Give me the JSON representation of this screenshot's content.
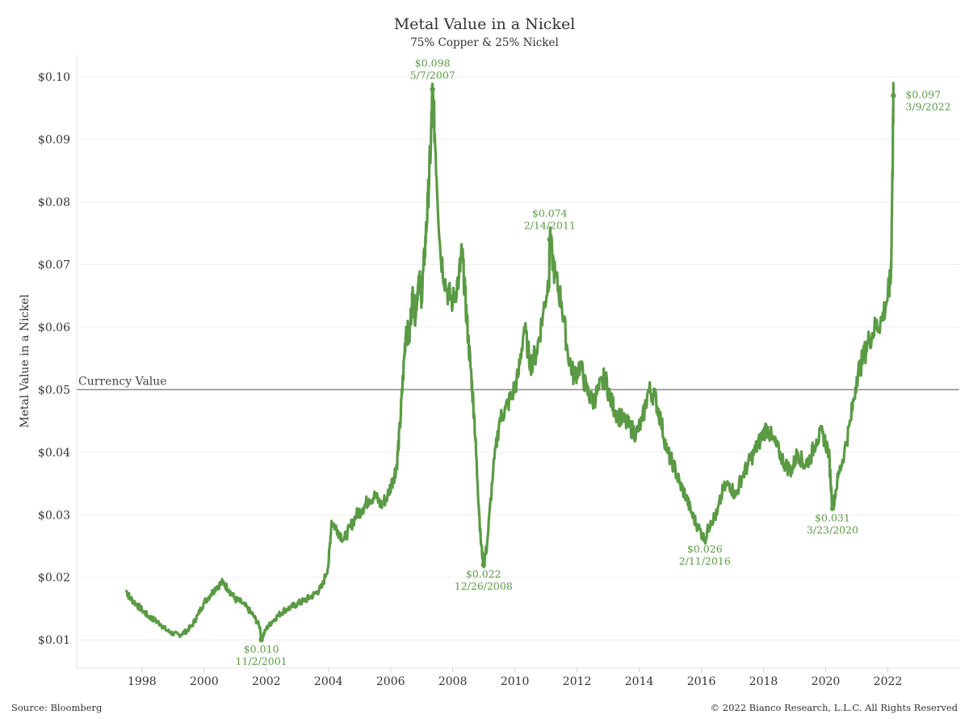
{
  "chart_data": {
    "type": "line",
    "title": "Metal Value in a Nickel",
    "subtitle": "75% Copper & 25% Nickel",
    "ylabel": "Metal Value in a Nickel",
    "xlabel": "",
    "ylim": [
      0.0055,
      0.1035
    ],
    "xlim": [
      1995.9,
      2024.3
    ],
    "yticks": [
      {
        "value": 0.01,
        "label": "$0.01"
      },
      {
        "value": 0.02,
        "label": "$0.02"
      },
      {
        "value": 0.03,
        "label": "$0.03"
      },
      {
        "value": 0.04,
        "label": "$0.04"
      },
      {
        "value": 0.05,
        "label": "$0.05"
      },
      {
        "value": 0.06,
        "label": "$0.06"
      },
      {
        "value": 0.07,
        "label": "$0.07"
      },
      {
        "value": 0.08,
        "label": "$0.08"
      },
      {
        "value": 0.09,
        "label": "$0.09"
      },
      {
        "value": 0.1,
        "label": "$0.10"
      }
    ],
    "xticks": [
      {
        "value": 1998,
        "label": "1998"
      },
      {
        "value": 2000,
        "label": "2000"
      },
      {
        "value": 2002,
        "label": "2002"
      },
      {
        "value": 2004,
        "label": "2004"
      },
      {
        "value": 2006,
        "label": "2006"
      },
      {
        "value": 2008,
        "label": "2008"
      },
      {
        "value": 2010,
        "label": "2010"
      },
      {
        "value": 2012,
        "label": "2012"
      },
      {
        "value": 2014,
        "label": "2014"
      },
      {
        "value": 2016,
        "label": "2016"
      },
      {
        "value": 2018,
        "label": "2018"
      },
      {
        "value": 2020,
        "label": "2020"
      },
      {
        "value": 2022,
        "label": "2022"
      }
    ],
    "grid": true,
    "series_color": "#5a9a44",
    "reference_line": {
      "value": 0.05,
      "label": "Currency Value",
      "color": "#8a8a8a"
    },
    "series": [
      {
        "x": [
          1997.5,
          1997.6,
          1997.8,
          1998.0,
          1998.2,
          1998.4,
          1998.6,
          1998.8,
          1999.0,
          1999.2,
          1999.4,
          1999.6,
          1999.8,
          2000.0,
          2000.2,
          2000.4,
          2000.6,
          2000.8,
          2001.0,
          2001.2,
          2001.4,
          2001.6,
          2001.8,
          2001.84,
          2002.0,
          2002.2,
          2002.4,
          2002.6,
          2002.8,
          2003.0,
          2003.2,
          2003.4,
          2003.6,
          2003.8,
          2004.0,
          2004.1,
          2004.3,
          2004.5,
          2004.7,
          2004.9,
          2005.1,
          2005.3,
          2005.5,
          2005.7,
          2005.9,
          2006.1,
          2006.2,
          2006.3,
          2006.4,
          2006.5,
          2006.6,
          2006.7,
          2006.8,
          2006.9,
          2007.0,
          2007.1,
          2007.2,
          2007.3,
          2007.35,
          2007.45,
          2007.6,
          2007.8,
          2008.0,
          2008.2,
          2008.3,
          2008.4,
          2008.5,
          2008.6,
          2008.7,
          2008.8,
          2008.9,
          2008.99,
          2009.1,
          2009.3,
          2009.5,
          2009.7,
          2009.9,
          2010.1,
          2010.3,
          2010.5,
          2010.7,
          2010.9,
          2011.1,
          2011.12,
          2011.3,
          2011.5,
          2011.7,
          2011.9,
          2012.1,
          2012.3,
          2012.5,
          2012.7,
          2012.9,
          2013.1,
          2013.3,
          2013.5,
          2013.7,
          2013.9,
          2014.1,
          2014.3,
          2014.5,
          2014.7,
          2014.9,
          2015.1,
          2015.3,
          2015.5,
          2015.7,
          2015.9,
          2016.11,
          2016.3,
          2016.5,
          2016.7,
          2016.9,
          2017.1,
          2017.3,
          2017.5,
          2017.7,
          2017.9,
          2018.1,
          2018.3,
          2018.5,
          2018.7,
          2018.9,
          2019.1,
          2019.3,
          2019.5,
          2019.7,
          2019.9,
          2020.1,
          2020.22,
          2020.4,
          2020.6,
          2020.8,
          2021.0,
          2021.2,
          2021.4,
          2021.6,
          2021.8,
          2022.0,
          2022.1,
          2022.15,
          2022.18
        ],
        "y": [
          0.0178,
          0.0168,
          0.0158,
          0.0148,
          0.0138,
          0.0132,
          0.0125,
          0.0115,
          0.011,
          0.0108,
          0.0113,
          0.0122,
          0.014,
          0.016,
          0.0172,
          0.0185,
          0.0192,
          0.018,
          0.0165,
          0.016,
          0.015,
          0.0138,
          0.012,
          0.01,
          0.0118,
          0.013,
          0.014,
          0.0148,
          0.0152,
          0.0158,
          0.0162,
          0.0168,
          0.0175,
          0.0185,
          0.022,
          0.029,
          0.0275,
          0.026,
          0.028,
          0.03,
          0.031,
          0.0325,
          0.033,
          0.0315,
          0.033,
          0.036,
          0.038,
          0.044,
          0.052,
          0.06,
          0.058,
          0.065,
          0.062,
          0.068,
          0.065,
          0.072,
          0.08,
          0.09,
          0.098,
          0.088,
          0.072,
          0.066,
          0.064,
          0.068,
          0.072,
          0.065,
          0.058,
          0.052,
          0.045,
          0.035,
          0.026,
          0.022,
          0.025,
          0.037,
          0.045,
          0.047,
          0.049,
          0.052,
          0.06,
          0.054,
          0.056,
          0.062,
          0.068,
          0.074,
          0.068,
          0.064,
          0.056,
          0.052,
          0.054,
          0.05,
          0.048,
          0.05,
          0.052,
          0.048,
          0.046,
          0.045,
          0.044,
          0.043,
          0.045,
          0.05,
          0.049,
          0.045,
          0.04,
          0.038,
          0.035,
          0.033,
          0.03,
          0.028,
          0.026,
          0.029,
          0.03,
          0.034,
          0.035,
          0.033,
          0.036,
          0.038,
          0.04,
          0.042,
          0.044,
          0.042,
          0.04,
          0.038,
          0.037,
          0.04,
          0.038,
          0.039,
          0.042,
          0.043,
          0.04,
          0.031,
          0.036,
          0.04,
          0.045,
          0.052,
          0.055,
          0.058,
          0.06,
          0.061,
          0.065,
          0.068,
          0.085,
          0.097
        ]
      }
    ],
    "annotations": [
      {
        "x": 2001.84,
        "y": 0.01,
        "value": "$0.010",
        "date": "11/2/2001",
        "pos": "below"
      },
      {
        "x": 2007.35,
        "y": 0.098,
        "value": "$0.098",
        "date": "5/7/2007",
        "pos": "above"
      },
      {
        "x": 2008.99,
        "y": 0.022,
        "value": "$0.022",
        "date": "12/26/2008",
        "pos": "below"
      },
      {
        "x": 2011.12,
        "y": 0.074,
        "value": "$0.074",
        "date": "2/14/2011",
        "pos": "above"
      },
      {
        "x": 2016.11,
        "y": 0.026,
        "value": "$0.026",
        "date": "2/11/2016",
        "pos": "below"
      },
      {
        "x": 2020.22,
        "y": 0.031,
        "value": "$0.031",
        "date": "3/23/2020",
        "pos": "below"
      },
      {
        "x": 2022.18,
        "y": 0.097,
        "value": "$0.097",
        "date": "3/9/2022",
        "pos": "right"
      }
    ]
  },
  "footer": {
    "source": "Source: Bloomberg",
    "copyright": "© 2022 Bianco Research, L.L.C. All Rights Reserved"
  }
}
